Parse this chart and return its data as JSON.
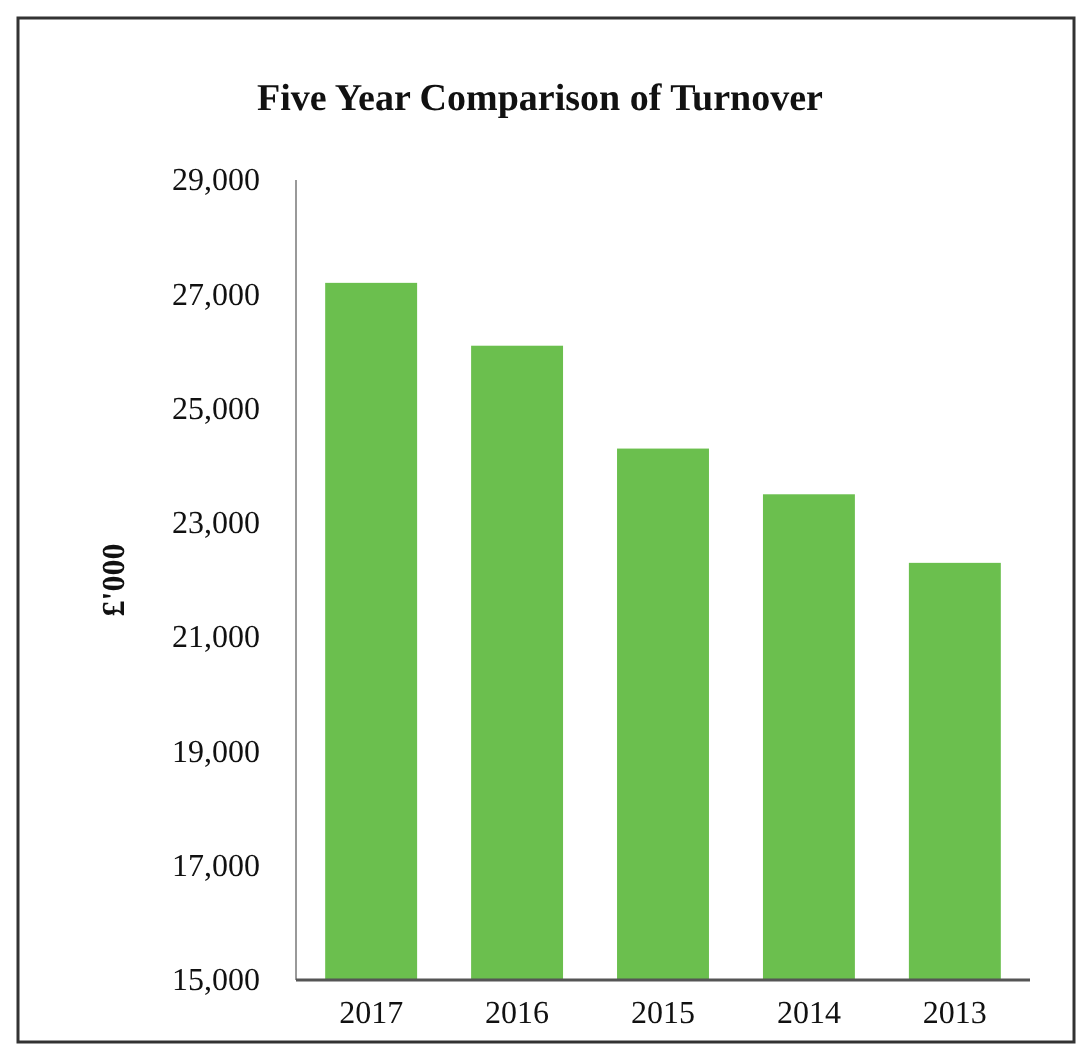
{
  "chart_data": {
    "type": "bar",
    "title": "Five Year Comparison of Turnover",
    "ylabel": "£'000",
    "categories": [
      "2017",
      "2016",
      "2015",
      "2014",
      "2013"
    ],
    "values": [
      27200,
      26100,
      24300,
      23500,
      22300
    ],
    "color": "#6bbf4e",
    "ylim": [
      15000,
      29000
    ],
    "yticks": [
      {
        "value": 15000,
        "label": "15,000"
      },
      {
        "value": 17000,
        "label": "17,000"
      },
      {
        "value": 19000,
        "label": "19,000"
      },
      {
        "value": 21000,
        "label": "21,000"
      },
      {
        "value": 23000,
        "label": "23,000"
      },
      {
        "value": 25000,
        "label": "25,000"
      },
      {
        "value": 27000,
        "label": "27,000"
      },
      {
        "value": 29000,
        "label": "29,000"
      }
    ],
    "grid": false
  }
}
